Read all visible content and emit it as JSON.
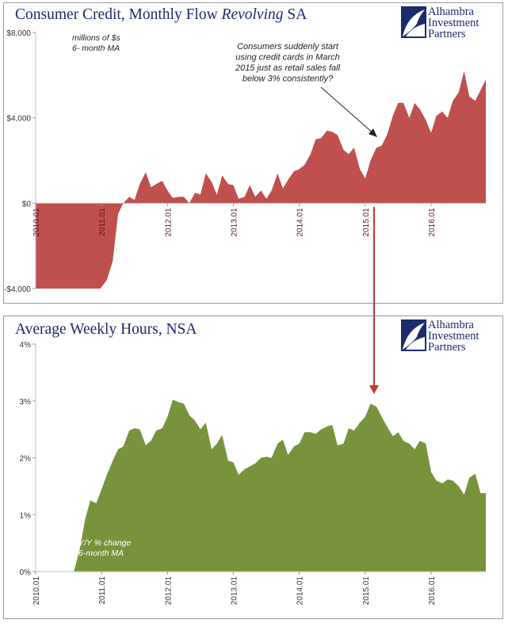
{
  "logo": {
    "line1": "Alhambra",
    "line2": "Investment",
    "line3": "Partners"
  },
  "chart_data": [
    {
      "type": "area",
      "title_part1": "Consumer Credit, Monthly Flow ",
      "title_italic": "Revolving",
      "title_part2": " SA",
      "note_line1": "millions of $s",
      "note_line2": "6- month MA",
      "annotation": [
        "Consumers suddenly start",
        "using credit cards in March",
        "2015 just as retail sales fall",
        "below 3% consistently?"
      ],
      "fill_color": "#c0504d",
      "yticks": [
        -4000,
        0,
        4000,
        8000
      ],
      "ytick_labels": [
        "-$4,000",
        "$0",
        "$4,000",
        "$8,000"
      ],
      "ylim": [
        -4000,
        8000
      ],
      "xlim": [
        2010.0,
        2016.83
      ],
      "xticks": [
        2010.0,
        2011.0,
        2012.0,
        2013.0,
        2014.0,
        2015.0,
        2016.0
      ],
      "xtick_labels": [
        "2010.01",
        "2011.01",
        "2012.01",
        "2013.01",
        "2014.01",
        "2015.01",
        "2016.01"
      ],
      "x": [
        2010.0,
        2010.5,
        2010.98,
        2011.08,
        2011.17,
        2011.25,
        2011.33,
        2011.42,
        2011.5,
        2011.58,
        2011.67,
        2011.75,
        2011.83,
        2011.92,
        2012.0,
        2012.08,
        2012.17,
        2012.25,
        2012.33,
        2012.42,
        2012.5,
        2012.58,
        2012.67,
        2012.75,
        2012.83,
        2012.92,
        2013.0,
        2013.08,
        2013.17,
        2013.25,
        2013.33,
        2013.42,
        2013.5,
        2013.58,
        2013.67,
        2013.75,
        2013.83,
        2013.92,
        2014.0,
        2014.08,
        2014.17,
        2014.25,
        2014.33,
        2014.42,
        2014.5,
        2014.58,
        2014.67,
        2014.75,
        2014.83,
        2014.92,
        2015.0,
        2015.08,
        2015.17,
        2015.25,
        2015.33,
        2015.42,
        2015.5,
        2015.58,
        2015.67,
        2015.75,
        2015.83,
        2015.92,
        2016.0,
        2016.08,
        2016.17,
        2016.25,
        2016.33,
        2016.42,
        2016.5,
        2016.58,
        2016.67,
        2016.75,
        2016.83
      ],
      "y": [
        -4000,
        -4000,
        -4000,
        -3600,
        -2700,
        -500,
        0,
        300,
        150,
        900,
        1450,
        750,
        900,
        1050,
        600,
        250,
        300,
        300,
        0,
        500,
        400,
        1400,
        1000,
        400,
        1300,
        900,
        850,
        200,
        300,
        850,
        300,
        600,
        200,
        600,
        1400,
        700,
        1100,
        1500,
        1600,
        1800,
        2300,
        3000,
        3050,
        3400,
        3350,
        3200,
        2500,
        2300,
        2600,
        1600,
        1150,
        2000,
        2600,
        2700,
        3200,
        4100,
        4700,
        4700,
        4000,
        4700,
        4400,
        3900,
        3300,
        4100,
        4300,
        4000,
        4800,
        5200,
        6200,
        5000,
        4800,
        5300,
        5800
      ]
    },
    {
      "type": "area",
      "title": "Average Weekly Hours, NSA",
      "note_line1": "Y/Y % change",
      "note_line2": "6-month MA",
      "fill_color": "#77933c",
      "yticks": [
        0,
        1,
        2,
        3,
        4
      ],
      "ytick_labels": [
        "0%",
        "1%",
        "2%",
        "3%",
        "4%"
      ],
      "ylim": [
        0,
        4
      ],
      "xlim": [
        2010.0,
        2016.83
      ],
      "xticks": [
        2010.0,
        2011.0,
        2012.0,
        2013.0,
        2014.0,
        2015.0,
        2016.0
      ],
      "xtick_labels": [
        "2010.01",
        "2011.01",
        "2012.01",
        "2013.01",
        "2014.01",
        "2015.01",
        "2016.01"
      ],
      "x": [
        2010.0,
        2010.42,
        2010.5,
        2010.58,
        2010.67,
        2010.75,
        2010.83,
        2010.92,
        2011.0,
        2011.08,
        2011.17,
        2011.25,
        2011.33,
        2011.42,
        2011.5,
        2011.58,
        2011.67,
        2011.75,
        2011.83,
        2011.92,
        2012.0,
        2012.08,
        2012.17,
        2012.25,
        2012.33,
        2012.42,
        2012.5,
        2012.58,
        2012.67,
        2012.75,
        2012.83,
        2012.92,
        2013.0,
        2013.08,
        2013.17,
        2013.25,
        2013.33,
        2013.42,
        2013.5,
        2013.58,
        2013.67,
        2013.75,
        2013.83,
        2013.92,
        2014.0,
        2014.08,
        2014.17,
        2014.25,
        2014.33,
        2014.42,
        2014.5,
        2014.58,
        2014.67,
        2014.75,
        2014.83,
        2014.92,
        2015.0,
        2015.08,
        2015.17,
        2015.25,
        2015.33,
        2015.42,
        2015.5,
        2015.58,
        2015.67,
        2015.75,
        2015.83,
        2015.92,
        2016.0,
        2016.08,
        2016.17,
        2016.25,
        2016.33,
        2016.42,
        2016.5,
        2016.58,
        2016.67,
        2016.75,
        2016.83
      ],
      "y": [
        0,
        0,
        0,
        0,
        0.4,
        0.92,
        1.25,
        1.2,
        1.45,
        1.7,
        1.95,
        2.15,
        2.2,
        2.48,
        2.52,
        2.5,
        2.22,
        2.3,
        2.48,
        2.52,
        2.72,
        3.02,
        2.98,
        2.95,
        2.75,
        2.65,
        2.5,
        2.62,
        2.15,
        2.25,
        2.4,
        1.95,
        1.92,
        1.7,
        1.8,
        1.85,
        1.9,
        2.0,
        2.02,
        2.0,
        2.25,
        2.32,
        2.05,
        2.2,
        2.25,
        2.45,
        2.45,
        2.42,
        2.5,
        2.55,
        2.58,
        2.22,
        2.25,
        2.52,
        2.48,
        2.62,
        2.72,
        2.95,
        2.9,
        2.72,
        2.55,
        2.38,
        2.45,
        2.3,
        2.25,
        2.15,
        2.3,
        2.25,
        1.75,
        1.6,
        1.55,
        1.62,
        1.6,
        1.5,
        1.35,
        1.65,
        1.72,
        1.38,
        1.38
      ]
    }
  ]
}
